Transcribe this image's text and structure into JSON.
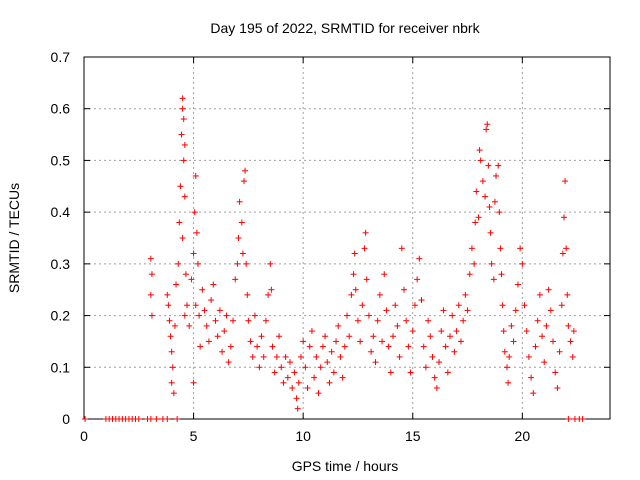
{
  "chart_data": {
    "type": "scatter",
    "title": "Day 195 of 2022, SRMTID for receiver nbrk",
    "xlabel": "GPS time / hours",
    "ylabel": "SRMTID / TECUs",
    "xlim": [
      0,
      24
    ],
    "ylim": [
      0,
      0.7
    ],
    "x_ticks": [
      0,
      5,
      10,
      15,
      20
    ],
    "y_ticks": [
      0,
      0.1,
      0.2,
      0.3,
      0.4,
      0.5,
      0.6,
      0.7
    ],
    "grid": true,
    "marker": "+",
    "color": "#ff0000",
    "series": [
      {
        "name": "SRMTID",
        "points": [
          [
            0.05,
            0
          ],
          [
            1.0,
            0
          ],
          [
            1.15,
            0
          ],
          [
            1.3,
            0
          ],
          [
            1.45,
            0
          ],
          [
            1.6,
            0
          ],
          [
            1.75,
            0
          ],
          [
            1.9,
            0
          ],
          [
            2.05,
            0
          ],
          [
            2.2,
            0
          ],
          [
            2.35,
            0
          ],
          [
            2.5,
            0
          ],
          [
            2.9,
            0
          ],
          [
            3.05,
            0
          ],
          [
            3.3,
            0
          ],
          [
            3.6,
            0
          ],
          [
            3.8,
            0
          ],
          [
            4.25,
            0
          ],
          [
            22.1,
            0
          ],
          [
            22.4,
            0
          ],
          [
            22.6,
            0
          ],
          [
            22.75,
            0
          ],
          [
            3.05,
            0.31
          ],
          [
            3.1,
            0.28
          ],
          [
            3.05,
            0.24
          ],
          [
            3.1,
            0.2
          ],
          [
            3.8,
            0.24
          ],
          [
            3.85,
            0.22
          ],
          [
            3.9,
            0.19
          ],
          [
            3.95,
            0.16
          ],
          [
            4.0,
            0.13
          ],
          [
            4.05,
            0.1
          ],
          [
            4.0,
            0.07
          ],
          [
            4.1,
            0.05
          ],
          [
            4.15,
            0.18
          ],
          [
            4.2,
            0.26
          ],
          [
            4.3,
            0.3
          ],
          [
            4.35,
            0.38
          ],
          [
            4.4,
            0.45
          ],
          [
            4.45,
            0.55
          ],
          [
            4.5,
            0.62
          ],
          [
            4.5,
            0.6
          ],
          [
            4.55,
            0.58
          ],
          [
            4.6,
            0.53
          ],
          [
            4.55,
            0.5
          ],
          [
            4.6,
            0.43
          ],
          [
            4.5,
            0.35
          ],
          [
            4.65,
            0.28
          ],
          [
            4.7,
            0.22
          ],
          [
            4.6,
            0.2
          ],
          [
            4.8,
            0.18
          ],
          [
            4.9,
            0.27
          ],
          [
            5.0,
            0.32
          ],
          [
            5.05,
            0.4
          ],
          [
            5.1,
            0.47
          ],
          [
            5.15,
            0.36
          ],
          [
            5.2,
            0.3
          ],
          [
            5.1,
            0.22
          ],
          [
            5.25,
            0.2
          ],
          [
            5.3,
            0.14
          ],
          [
            5.0,
            0.07
          ],
          [
            5.4,
            0.25
          ],
          [
            5.5,
            0.21
          ],
          [
            5.6,
            0.18
          ],
          [
            5.7,
            0.15
          ],
          [
            5.8,
            0.23
          ],
          [
            5.9,
            0.26
          ],
          [
            6.0,
            0.19
          ],
          [
            6.1,
            0.16
          ],
          [
            6.2,
            0.21
          ],
          [
            6.3,
            0.13
          ],
          [
            6.4,
            0.17
          ],
          [
            6.5,
            0.2
          ],
          [
            6.6,
            0.11
          ],
          [
            6.7,
            0.14
          ],
          [
            6.8,
            0.19
          ],
          [
            6.9,
            0.27
          ],
          [
            7.0,
            0.3
          ],
          [
            7.05,
            0.35
          ],
          [
            7.1,
            0.42
          ],
          [
            7.2,
            0.38
          ],
          [
            7.25,
            0.32
          ],
          [
            7.3,
            0.46
          ],
          [
            7.35,
            0.48
          ],
          [
            7.4,
            0.3
          ],
          [
            7.45,
            0.24
          ],
          [
            7.5,
            0.19
          ],
          [
            7.6,
            0.15
          ],
          [
            7.7,
            0.12
          ],
          [
            7.8,
            0.2
          ],
          [
            7.9,
            0.14
          ],
          [
            8.0,
            0.1
          ],
          [
            8.1,
            0.16
          ],
          [
            8.2,
            0.12
          ],
          [
            8.3,
            0.19
          ],
          [
            8.4,
            0.24
          ],
          [
            8.5,
            0.3
          ],
          [
            8.55,
            0.25
          ],
          [
            8.6,
            0.14
          ],
          [
            8.7,
            0.09
          ],
          [
            8.8,
            0.12
          ],
          [
            8.9,
            0.16
          ],
          [
            9.0,
            0.1
          ],
          [
            9.1,
            0.07
          ],
          [
            9.2,
            0.12
          ],
          [
            9.3,
            0.08
          ],
          [
            9.4,
            0.11
          ],
          [
            9.5,
            0.06
          ],
          [
            9.6,
            0.09
          ],
          [
            9.7,
            0.04
          ],
          [
            9.75,
            0.02
          ],
          [
            9.8,
            0.07
          ],
          [
            9.9,
            0.12
          ],
          [
            10.0,
            0.15
          ],
          [
            10.1,
            0.1
          ],
          [
            10.2,
            0.06
          ],
          [
            10.3,
            0.14
          ],
          [
            10.4,
            0.17
          ],
          [
            10.5,
            0.08
          ],
          [
            10.6,
            0.12
          ],
          [
            10.7,
            0.05
          ],
          [
            10.8,
            0.1
          ],
          [
            10.9,
            0.14
          ],
          [
            11.0,
            0.16
          ],
          [
            11.1,
            0.11
          ],
          [
            11.2,
            0.07
          ],
          [
            11.3,
            0.13
          ],
          [
            11.4,
            0.09
          ],
          [
            11.5,
            0.15
          ],
          [
            11.6,
            0.18
          ],
          [
            11.7,
            0.12
          ],
          [
            11.8,
            0.08
          ],
          [
            11.9,
            0.14
          ],
          [
            12.0,
            0.2
          ],
          [
            12.1,
            0.16
          ],
          [
            12.2,
            0.24
          ],
          [
            12.3,
            0.28
          ],
          [
            12.35,
            0.32
          ],
          [
            12.4,
            0.25
          ],
          [
            12.5,
            0.19
          ],
          [
            12.6,
            0.15
          ],
          [
            12.7,
            0.22
          ],
          [
            12.8,
            0.33
          ],
          [
            12.85,
            0.36
          ],
          [
            12.9,
            0.27
          ],
          [
            13.0,
            0.2
          ],
          [
            13.1,
            0.13
          ],
          [
            13.2,
            0.16
          ],
          [
            13.3,
            0.11
          ],
          [
            13.4,
            0.19
          ],
          [
            13.5,
            0.24
          ],
          [
            13.6,
            0.15
          ],
          [
            13.7,
            0.28
          ],
          [
            13.8,
            0.21
          ],
          [
            13.9,
            0.14
          ],
          [
            14.0,
            0.09
          ],
          [
            14.1,
            0.16
          ],
          [
            14.2,
            0.22
          ],
          [
            14.3,
            0.18
          ],
          [
            14.4,
            0.12
          ],
          [
            14.5,
            0.33
          ],
          [
            14.6,
            0.25
          ],
          [
            14.7,
            0.19
          ],
          [
            14.8,
            0.14
          ],
          [
            14.9,
            0.09
          ],
          [
            15.0,
            0.17
          ],
          [
            15.1,
            0.22
          ],
          [
            15.2,
            0.27
          ],
          [
            15.3,
            0.31
          ],
          [
            15.4,
            0.23
          ],
          [
            15.5,
            0.14
          ],
          [
            15.6,
            0.1
          ],
          [
            15.7,
            0.19
          ],
          [
            15.8,
            0.16
          ],
          [
            15.9,
            0.12
          ],
          [
            16.0,
            0.08
          ],
          [
            16.1,
            0.06
          ],
          [
            16.2,
            0.11
          ],
          [
            16.3,
            0.17
          ],
          [
            16.4,
            0.21
          ],
          [
            16.5,
            0.14
          ],
          [
            16.6,
            0.09
          ],
          [
            16.7,
            0.16
          ],
          [
            16.8,
            0.2
          ],
          [
            16.9,
            0.13
          ],
          [
            17.0,
            0.17
          ],
          [
            17.1,
            0.22
          ],
          [
            17.2,
            0.15
          ],
          [
            17.3,
            0.19
          ],
          [
            17.4,
            0.24
          ],
          [
            17.5,
            0.21
          ],
          [
            17.6,
            0.28
          ],
          [
            17.7,
            0.33
          ],
          [
            17.8,
            0.3
          ],
          [
            17.85,
            0.38
          ],
          [
            17.9,
            0.44
          ],
          [
            18.0,
            0.39
          ],
          [
            18.05,
            0.52
          ],
          [
            18.1,
            0.5
          ],
          [
            18.2,
            0.46
          ],
          [
            18.3,
            0.43
          ],
          [
            18.35,
            0.56
          ],
          [
            18.4,
            0.57
          ],
          [
            18.45,
            0.49
          ],
          [
            18.5,
            0.41
          ],
          [
            18.55,
            0.36
          ],
          [
            18.6,
            0.3
          ],
          [
            18.7,
            0.27
          ],
          [
            18.75,
            0.42
          ],
          [
            18.8,
            0.47
          ],
          [
            18.9,
            0.49
          ],
          [
            18.95,
            0.4
          ],
          [
            19.0,
            0.33
          ],
          [
            19.05,
            0.28
          ],
          [
            19.1,
            0.22
          ],
          [
            19.15,
            0.17
          ],
          [
            19.2,
            0.13
          ],
          [
            19.3,
            0.1
          ],
          [
            19.35,
            0.07
          ],
          [
            19.4,
            0.12
          ],
          [
            19.5,
            0.18
          ],
          [
            19.6,
            0.15
          ],
          [
            19.7,
            0.21
          ],
          [
            19.8,
            0.26
          ],
          [
            19.9,
            0.33
          ],
          [
            20.0,
            0.3
          ],
          [
            20.1,
            0.22
          ],
          [
            20.2,
            0.17
          ],
          [
            20.3,
            0.12
          ],
          [
            20.4,
            0.08
          ],
          [
            20.5,
            0.05
          ],
          [
            20.6,
            0.14
          ],
          [
            20.7,
            0.19
          ],
          [
            20.8,
            0.24
          ],
          [
            20.9,
            0.16
          ],
          [
            21.0,
            0.11
          ],
          [
            21.1,
            0.18
          ],
          [
            21.2,
            0.25
          ],
          [
            21.3,
            0.21
          ],
          [
            21.4,
            0.15
          ],
          [
            21.5,
            0.09
          ],
          [
            21.6,
            0.06
          ],
          [
            21.7,
            0.13
          ],
          [
            21.8,
            0.22
          ],
          [
            21.85,
            0.32
          ],
          [
            21.9,
            0.39
          ],
          [
            21.95,
            0.46
          ],
          [
            22.0,
            0.33
          ],
          [
            22.05,
            0.24
          ],
          [
            22.1,
            0.18
          ],
          [
            22.2,
            0.15
          ],
          [
            22.3,
            0.12
          ],
          [
            22.35,
            0.17
          ]
        ]
      }
    ]
  }
}
